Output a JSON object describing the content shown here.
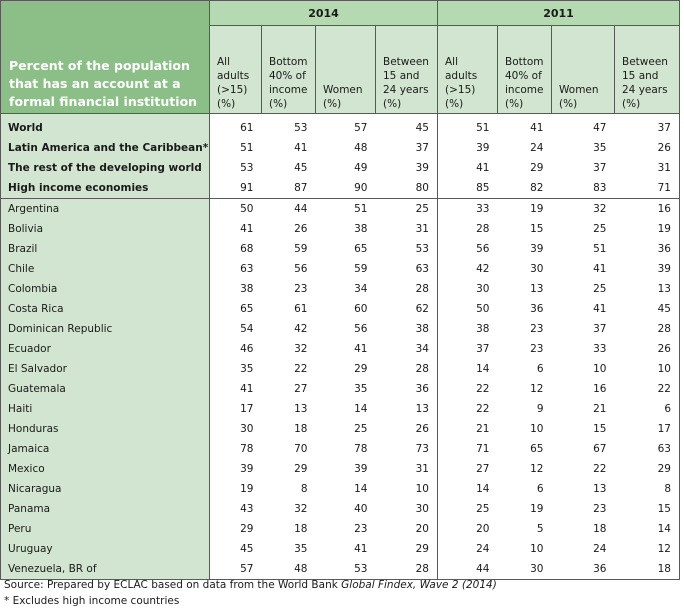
{
  "table": {
    "row_header": "Percent of the population that has an account at a formal financial institution",
    "years": [
      "2014",
      "2011"
    ],
    "columns": [
      "All adults (>15) (%)",
      "Bottom 40% of income (%)",
      "Women (%)",
      "Between 15 and 24 years (%)"
    ],
    "column_lines": [
      [
        "All",
        "adults",
        "(>15)",
        "(%)"
      ],
      [
        "Bottom",
        "40% of",
        "income",
        "(%)"
      ],
      [
        "Women",
        "(%)"
      ],
      [
        "Between",
        "15 and",
        "24 years",
        "(%)"
      ]
    ],
    "summary_rows": [
      {
        "name": "World",
        "v2014": [
          61,
          53,
          57,
          45
        ],
        "v2011": [
          51,
          41,
          47,
          37
        ]
      },
      {
        "name": "Latin America and the Caribbean*",
        "v2014": [
          51,
          41,
          48,
          37
        ],
        "v2011": [
          39,
          24,
          35,
          26
        ]
      },
      {
        "name": "The rest of the developing world",
        "v2014": [
          53,
          45,
          49,
          39
        ],
        "v2011": [
          41,
          29,
          37,
          31
        ]
      },
      {
        "name": "High income economies",
        "v2014": [
          91,
          87,
          90,
          80
        ],
        "v2011": [
          85,
          82,
          83,
          71
        ]
      }
    ],
    "country_rows": [
      {
        "name": "Argentina",
        "v2014": [
          50,
          44,
          51,
          25
        ],
        "v2011": [
          33,
          19,
          32,
          16
        ]
      },
      {
        "name": "Bolivia",
        "v2014": [
          41,
          26,
          38,
          31
        ],
        "v2011": [
          28,
          15,
          25,
          19
        ]
      },
      {
        "name": "Brazil",
        "v2014": [
          68,
          59,
          65,
          53
        ],
        "v2011": [
          56,
          39,
          51,
          36
        ]
      },
      {
        "name": "Chile",
        "v2014": [
          63,
          56,
          59,
          63
        ],
        "v2011": [
          42,
          30,
          41,
          39
        ]
      },
      {
        "name": "Colombia",
        "v2014": [
          38,
          23,
          34,
          28
        ],
        "v2011": [
          30,
          13,
          25,
          13
        ]
      },
      {
        "name": "Costa Rica",
        "v2014": [
          65,
          61,
          60,
          62
        ],
        "v2011": [
          50,
          36,
          41,
          45
        ]
      },
      {
        "name": "Dominican Republic",
        "v2014": [
          54,
          42,
          56,
          38
        ],
        "v2011": [
          38,
          23,
          37,
          28
        ]
      },
      {
        "name": "Ecuador",
        "v2014": [
          46,
          32,
          41,
          34
        ],
        "v2011": [
          37,
          23,
          33,
          26
        ]
      },
      {
        "name": "El Salvador",
        "v2014": [
          35,
          22,
          29,
          28
        ],
        "v2011": [
          14,
          6,
          10,
          10
        ]
      },
      {
        "name": "Guatemala",
        "v2014": [
          41,
          27,
          35,
          36
        ],
        "v2011": [
          22,
          12,
          16,
          22
        ]
      },
      {
        "name": "Haiti",
        "v2014": [
          17,
          13,
          14,
          13
        ],
        "v2011": [
          22,
          9,
          21,
          6
        ]
      },
      {
        "name": "Honduras",
        "v2014": [
          30,
          18,
          25,
          26
        ],
        "v2011": [
          21,
          10,
          15,
          17
        ]
      },
      {
        "name": "Jamaica",
        "v2014": [
          78,
          70,
          78,
          73
        ],
        "v2011": [
          71,
          65,
          67,
          63
        ]
      },
      {
        "name": "Mexico",
        "v2014": [
          39,
          29,
          39,
          31
        ],
        "v2011": [
          27,
          12,
          22,
          29
        ]
      },
      {
        "name": "Nicaragua",
        "v2014": [
          19,
          8,
          14,
          10
        ],
        "v2011": [
          14,
          6,
          13,
          8
        ]
      },
      {
        "name": "Panama",
        "v2014": [
          43,
          32,
          40,
          30
        ],
        "v2011": [
          25,
          19,
          23,
          15
        ]
      },
      {
        "name": "Peru",
        "v2014": [
          29,
          18,
          23,
          20
        ],
        "v2011": [
          20,
          5,
          18,
          14
        ]
      },
      {
        "name": "Uruguay",
        "v2014": [
          45,
          35,
          41,
          29
        ],
        "v2011": [
          24,
          10,
          24,
          12
        ]
      },
      {
        "name": "Venezuela, BR of",
        "v2014": [
          57,
          48,
          53,
          28
        ],
        "v2011": [
          44,
          30,
          36,
          18
        ]
      }
    ]
  },
  "footer": {
    "source_prefix": "Source: Prepared by ECLAC based on data from the World Bank ",
    "source_italic": "Global Findex, Wave 2 (2014)",
    "note": "* Excludes high income countries"
  },
  "colors": {
    "header_dark_green": "#8cbf87",
    "year_header_green": "#b5d9b1",
    "light_green": "#d2e5d0",
    "border": "#595959"
  }
}
